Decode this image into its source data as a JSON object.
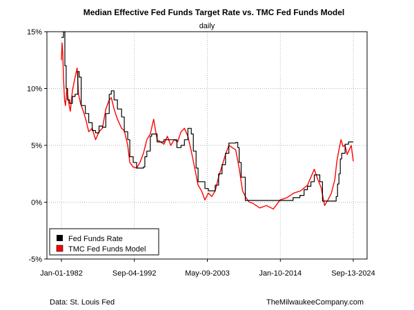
{
  "chart_data": {
    "type": "line",
    "title": "Median Effective Fed Funds Target Rate vs. TMC Fed Funds Model",
    "subtitle": "daily",
    "ylim": [
      -5,
      15
    ],
    "yticks": [
      15,
      10,
      5,
      0,
      -5
    ],
    "ytick_labels": [
      "15%",
      "10%",
      "5%",
      "0%",
      "-5%"
    ],
    "xlim": [
      1982.0,
      2024.7
    ],
    "xticks": [
      1982.0,
      1992.67,
      2003.35,
      2014.03,
      2024.7
    ],
    "xtick_labels": [
      "Jan-01-1982",
      "Sep-04-1992",
      "May-09-2003",
      "Jan-10-2014",
      "Sep-13-2024"
    ],
    "grid": true,
    "legend_position": "bottom-left",
    "series": [
      {
        "name": "Fed Funds Rate",
        "color": "#000000",
        "x": [
          1982.0,
          1982.3,
          1982.5,
          1982.7,
          1982.9,
          1983.2,
          1983.6,
          1984.0,
          1984.4,
          1984.6,
          1984.9,
          1985.5,
          1986.0,
          1986.5,
          1987.0,
          1987.5,
          1988.0,
          1988.5,
          1989.0,
          1989.3,
          1989.7,
          1990.2,
          1990.8,
          1991.2,
          1991.7,
          1992.0,
          1992.5,
          1993.0,
          1994.0,
          1994.2,
          1994.5,
          1995.0,
          1995.2,
          1996.0,
          1997.0,
          1998.0,
          1998.9,
          1999.5,
          2000.0,
          2000.5,
          2001.0,
          2001.3,
          2001.7,
          2002.0,
          2003.0,
          2003.5,
          2004.0,
          2004.5,
          2005.0,
          2005.5,
          2006.0,
          2006.5,
          2007.5,
          2007.8,
          2008.0,
          2008.3,
          2008.9,
          2009.5,
          2012.0,
          2015.0,
          2015.9,
          2016.9,
          2017.5,
          2018.0,
          2018.5,
          2019.0,
          2019.5,
          2019.8,
          2020.2,
          2021.5,
          2022.2,
          2022.4,
          2022.6,
          2022.8,
          2023.0,
          2023.5,
          2024.0,
          2024.7
        ],
        "values": [
          14.5,
          15.0,
          12.0,
          10.0,
          9.0,
          8.7,
          9.3,
          9.5,
          11.5,
          11.0,
          8.5,
          7.8,
          7.0,
          6.3,
          6.1,
          6.7,
          6.6,
          7.8,
          9.5,
          9.8,
          9.0,
          8.2,
          7.5,
          6.2,
          5.5,
          4.0,
          3.5,
          3.0,
          3.1,
          4.0,
          4.5,
          5.8,
          6.0,
          5.3,
          5.5,
          5.5,
          4.8,
          5.0,
          5.5,
          6.5,
          6.0,
          4.5,
          3.0,
          1.8,
          1.2,
          1.0,
          1.0,
          1.5,
          2.5,
          3.3,
          4.3,
          5.2,
          5.25,
          4.8,
          3.5,
          2.2,
          0.15,
          0.15,
          0.15,
          0.15,
          0.4,
          0.6,
          1.1,
          1.4,
          1.8,
          2.4,
          2.4,
          1.8,
          0.1,
          0.1,
          0.5,
          1.6,
          2.5,
          3.8,
          4.3,
          5.1,
          5.3,
          5.3
        ]
      },
      {
        "name": "TMC Fed Funds Model",
        "color": "#ff0000",
        "x": [
          1982.0,
          1982.1,
          1982.2,
          1982.3,
          1982.45,
          1982.6,
          1982.8,
          1983.0,
          1983.3,
          1983.6,
          1984.0,
          1984.3,
          1984.5,
          1984.8,
          1985.2,
          1985.6,
          1986.0,
          1986.5,
          1987.0,
          1987.5,
          1988.0,
          1988.5,
          1989.0,
          1989.3,
          1989.7,
          1990.2,
          1990.8,
          1991.2,
          1991.7,
          1992.0,
          1992.5,
          1993.0,
          1993.5,
          1994.0,
          1994.5,
          1995.0,
          1995.5,
          1996.0,
          1996.5,
          1997.0,
          1997.5,
          1998.0,
          1998.5,
          1999.0,
          1999.5,
          2000.0,
          2000.5,
          2001.0,
          2001.5,
          2002.0,
          2002.5,
          2003.0,
          2003.5,
          2004.0,
          2004.5,
          2005.0,
          2005.5,
          2006.0,
          2006.5,
          2007.0,
          2007.5,
          2008.0,
          2008.5,
          2009.0,
          2009.5,
          2010.0,
          2011.0,
          2012.0,
          2013.0,
          2014.0,
          2015.0,
          2016.0,
          2017.0,
          2018.0,
          2018.5,
          2019.0,
          2019.5,
          2020.0,
          2020.5,
          2021.0,
          2021.5,
          2022.0,
          2022.3,
          2022.6,
          2022.9,
          2023.2,
          2023.5,
          2023.8,
          2024.1,
          2024.4,
          2024.7
        ],
        "values": [
          12.5,
          14.0,
          13.0,
          11.0,
          9.0,
          8.5,
          10.0,
          9.0,
          8.0,
          9.8,
          11.0,
          11.8,
          9.5,
          8.7,
          8.0,
          7.2,
          6.2,
          6.5,
          5.5,
          6.2,
          6.5,
          8.2,
          9.0,
          9.2,
          8.2,
          7.3,
          6.5,
          6.3,
          5.0,
          3.5,
          3.1,
          3.0,
          3.5,
          4.3,
          5.5,
          6.0,
          7.3,
          5.5,
          5.3,
          5.1,
          5.8,
          5.0,
          5.5,
          5.3,
          6.2,
          6.5,
          5.8,
          4.5,
          3.0,
          1.5,
          1.0,
          0.2,
          0.8,
          0.5,
          1.0,
          2.2,
          3.2,
          4.2,
          5.0,
          4.8,
          4.6,
          3.0,
          1.0,
          0.4,
          0.0,
          -0.1,
          -0.5,
          -0.3,
          -0.6,
          0.2,
          0.4,
          0.8,
          1.0,
          1.5,
          2.2,
          2.9,
          2.0,
          1.3,
          -0.3,
          0.2,
          0.8,
          2.0,
          3.6,
          4.6,
          5.5,
          4.9,
          5.0,
          4.2,
          4.6,
          5.0,
          3.6
        ]
      }
    ],
    "footer_left": "Data: St. Louis Fed",
    "footer_right": "TheMilwaukeeCompany.com"
  }
}
